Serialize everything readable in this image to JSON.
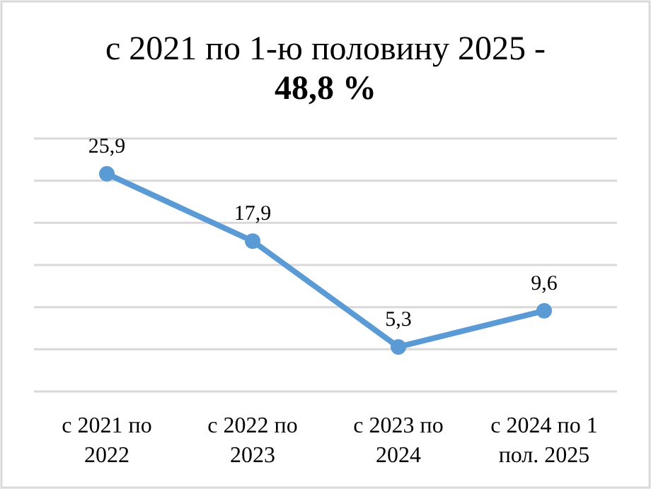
{
  "chart_data": {
    "type": "line",
    "title": "с 2021 по 1-ю половину 2025 -",
    "subtitle": "48,8 %",
    "categories": [
      "с 2021 по 2022",
      "с 2022 по 2023",
      "с 2023 по 2024",
      "с 2024 по 1 пол. 2025"
    ],
    "series": [
      {
        "color": "#5b9bd5",
        "values": [
          25.9,
          17.9,
          5.3,
          9.6
        ],
        "value_labels": [
          "25,9",
          "17,9",
          "5,3",
          "9,6"
        ]
      }
    ],
    "tick_labels": "x",
    "grid": "y",
    "marker": "circle",
    "line_style": "solid"
  }
}
